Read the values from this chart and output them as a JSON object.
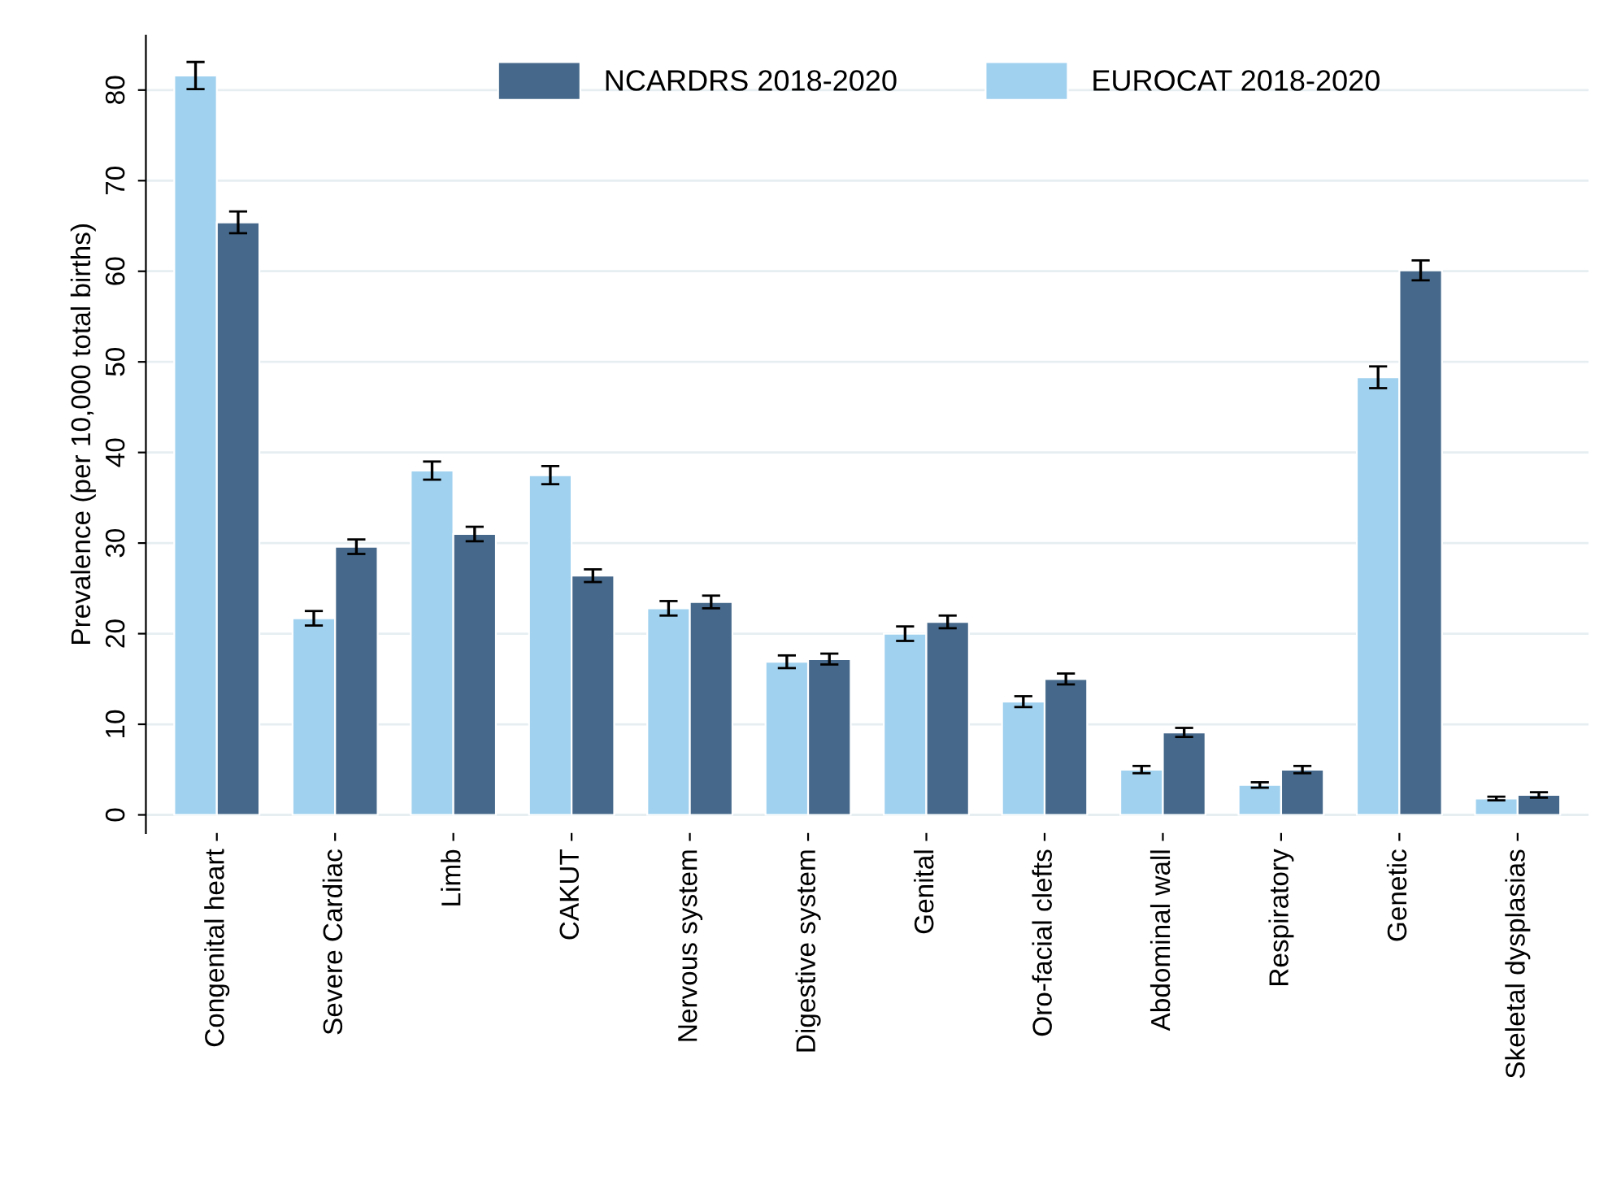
{
  "chart_data": {
    "type": "bar",
    "ylabel": "Prevalence (per 10,000 total births)",
    "categories": [
      "Congenital heart",
      "Severe Cardiac",
      "Limb",
      "CAKUT",
      "Nervous system",
      "Digestive system",
      "Genital",
      "Oro-facial clefts",
      "Abdominal wall",
      "Respiratory",
      "Genetic",
      "Skeletal dysplasias"
    ],
    "series": [
      {
        "name": "EUROCAT 2018-2020",
        "color": "#a0d1ef",
        "values": [
          81.6,
          21.7,
          38.0,
          37.5,
          22.8,
          16.9,
          20.0,
          12.5,
          5.0,
          3.3,
          48.3,
          1.8
        ],
        "errors": [
          1.5,
          0.8,
          1.0,
          1.0,
          0.8,
          0.7,
          0.8,
          0.6,
          0.4,
          0.3,
          1.2,
          0.2
        ]
      },
      {
        "name": "NCARDRS 2018-2020",
        "color": "#46698b",
        "values": [
          65.4,
          29.6,
          31.0,
          26.4,
          23.5,
          17.2,
          21.3,
          15.0,
          9.1,
          5.0,
          60.1,
          2.2
        ],
        "errors": [
          1.2,
          0.8,
          0.8,
          0.7,
          0.7,
          0.6,
          0.7,
          0.6,
          0.5,
          0.4,
          1.1,
          0.3
        ]
      }
    ],
    "ylim": [
      -2,
      86
    ],
    "yticks": [
      0,
      10,
      20,
      30,
      40,
      50,
      60,
      70,
      80
    ],
    "grid": "y",
    "legend": "top"
  }
}
